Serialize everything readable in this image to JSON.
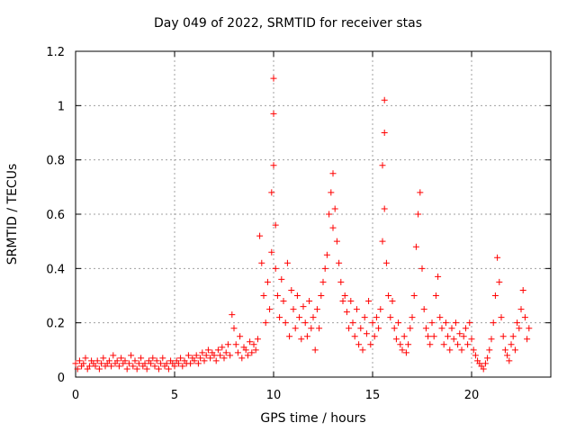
{
  "chart_data": {
    "type": "scatter",
    "title": "Day 049 of 2022, SRMTID for receiver stas",
    "xlabel": "GPS time / hours",
    "ylabel": "SRMTID / TECUs",
    "xlim": [
      0,
      24
    ],
    "ylim": [
      0,
      1.2
    ],
    "xticks": [
      "0",
      "5",
      "10",
      "15",
      "20"
    ],
    "xtick_values": [
      0,
      5,
      10,
      15,
      20
    ],
    "yticks": [
      "0",
      "0.2",
      "0.4",
      "0.6",
      "0.8",
      "1",
      "1.2"
    ],
    "ytick_values": [
      0,
      0.2,
      0.4,
      0.6,
      0.8,
      1.0,
      1.2
    ],
    "grid": true,
    "marker": "+",
    "color": "#ff0000",
    "series": [
      {
        "name": "SRMTID",
        "points": [
          [
            0.0,
            0.05
          ],
          [
            0.1,
            0.03
          ],
          [
            0.2,
            0.06
          ],
          [
            0.3,
            0.04
          ],
          [
            0.4,
            0.05
          ],
          [
            0.5,
            0.07
          ],
          [
            0.6,
            0.03
          ],
          [
            0.7,
            0.04
          ],
          [
            0.8,
            0.06
          ],
          [
            0.9,
            0.05
          ],
          [
            1.0,
            0.04
          ],
          [
            1.1,
            0.06
          ],
          [
            1.2,
            0.03
          ],
          [
            1.3,
            0.05
          ],
          [
            1.4,
            0.07
          ],
          [
            1.5,
            0.04
          ],
          [
            1.6,
            0.05
          ],
          [
            1.7,
            0.06
          ],
          [
            1.8,
            0.04
          ],
          [
            1.9,
            0.08
          ],
          [
            2.0,
            0.05
          ],
          [
            2.1,
            0.06
          ],
          [
            2.2,
            0.04
          ],
          [
            2.3,
            0.07
          ],
          [
            2.4,
            0.05
          ],
          [
            2.5,
            0.06
          ],
          [
            2.6,
            0.03
          ],
          [
            2.7,
            0.05
          ],
          [
            2.8,
            0.08
          ],
          [
            2.9,
            0.04
          ],
          [
            3.0,
            0.06
          ],
          [
            3.1,
            0.03
          ],
          [
            3.2,
            0.05
          ],
          [
            3.3,
            0.07
          ],
          [
            3.4,
            0.04
          ],
          [
            3.5,
            0.05
          ],
          [
            3.6,
            0.03
          ],
          [
            3.7,
            0.06
          ],
          [
            3.8,
            0.05
          ],
          [
            3.9,
            0.07
          ],
          [
            4.0,
            0.04
          ],
          [
            4.1,
            0.06
          ],
          [
            4.2,
            0.03
          ],
          [
            4.3,
            0.05
          ],
          [
            4.4,
            0.07
          ],
          [
            4.5,
            0.04
          ],
          [
            4.6,
            0.05
          ],
          [
            4.7,
            0.03
          ],
          [
            4.8,
            0.06
          ],
          [
            4.9,
            0.05
          ],
          [
            5.0,
            0.04
          ],
          [
            5.1,
            0.06
          ],
          [
            5.2,
            0.05
          ],
          [
            5.3,
            0.07
          ],
          [
            5.4,
            0.04
          ],
          [
            5.5,
            0.06
          ],
          [
            5.6,
            0.05
          ],
          [
            5.7,
            0.08
          ],
          [
            5.8,
            0.05
          ],
          [
            5.9,
            0.07
          ],
          [
            6.0,
            0.06
          ],
          [
            6.1,
            0.08
          ],
          [
            6.2,
            0.05
          ],
          [
            6.3,
            0.07
          ],
          [
            6.4,
            0.09
          ],
          [
            6.5,
            0.06
          ],
          [
            6.6,
            0.08
          ],
          [
            6.7,
            0.1
          ],
          [
            6.8,
            0.07
          ],
          [
            6.9,
            0.09
          ],
          [
            7.0,
            0.08
          ],
          [
            7.1,
            0.06
          ],
          [
            7.2,
            0.1
          ],
          [
            7.3,
            0.08
          ],
          [
            7.4,
            0.11
          ],
          [
            7.5,
            0.07
          ],
          [
            7.6,
            0.09
          ],
          [
            7.7,
            0.12
          ],
          [
            7.8,
            0.08
          ],
          [
            7.9,
            0.23
          ],
          [
            8.0,
            0.18
          ],
          [
            8.1,
            0.12
          ],
          [
            8.2,
            0.09
          ],
          [
            8.3,
            0.15
          ],
          [
            8.4,
            0.07
          ],
          [
            8.5,
            0.11
          ],
          [
            8.6,
            0.1
          ],
          [
            8.7,
            0.08
          ],
          [
            8.8,
            0.13
          ],
          [
            8.9,
            0.09
          ],
          [
            9.0,
            0.12
          ],
          [
            9.1,
            0.1
          ],
          [
            9.2,
            0.14
          ],
          [
            9.3,
            0.52
          ],
          [
            9.4,
            0.42
          ],
          [
            9.5,
            0.3
          ],
          [
            9.6,
            0.2
          ],
          [
            9.7,
            0.35
          ],
          [
            9.8,
            0.25
          ],
          [
            9.9,
            0.46
          ],
          [
            9.9,
            0.68
          ],
          [
            10.0,
            0.78
          ],
          [
            10.0,
            0.97
          ],
          [
            10.0,
            1.1
          ],
          [
            10.1,
            0.56
          ],
          [
            10.1,
            0.4
          ],
          [
            10.2,
            0.3
          ],
          [
            10.3,
            0.22
          ],
          [
            10.4,
            0.36
          ],
          [
            10.5,
            0.28
          ],
          [
            10.6,
            0.2
          ],
          [
            10.7,
            0.42
          ],
          [
            10.8,
            0.15
          ],
          [
            10.9,
            0.32
          ],
          [
            11.0,
            0.25
          ],
          [
            11.1,
            0.18
          ],
          [
            11.2,
            0.3
          ],
          [
            11.3,
            0.22
          ],
          [
            11.4,
            0.14
          ],
          [
            11.5,
            0.26
          ],
          [
            11.6,
            0.2
          ],
          [
            11.7,
            0.15
          ],
          [
            11.8,
            0.28
          ],
          [
            11.9,
            0.18
          ],
          [
            12.0,
            0.22
          ],
          [
            12.1,
            0.1
          ],
          [
            12.2,
            0.25
          ],
          [
            12.3,
            0.18
          ],
          [
            12.4,
            0.3
          ],
          [
            12.5,
            0.35
          ],
          [
            12.6,
            0.4
          ],
          [
            12.7,
            0.45
          ],
          [
            12.8,
            0.6
          ],
          [
            12.9,
            0.68
          ],
          [
            13.0,
            0.75
          ],
          [
            13.0,
            0.55
          ],
          [
            13.1,
            0.62
          ],
          [
            13.2,
            0.5
          ],
          [
            13.3,
            0.42
          ],
          [
            13.4,
            0.35
          ],
          [
            13.5,
            0.28
          ],
          [
            13.6,
            0.3
          ],
          [
            13.7,
            0.24
          ],
          [
            13.8,
            0.18
          ],
          [
            13.9,
            0.28
          ],
          [
            14.0,
            0.2
          ],
          [
            14.1,
            0.15
          ],
          [
            14.2,
            0.25
          ],
          [
            14.3,
            0.12
          ],
          [
            14.4,
            0.18
          ],
          [
            14.5,
            0.1
          ],
          [
            14.6,
            0.22
          ],
          [
            14.7,
            0.16
          ],
          [
            14.8,
            0.28
          ],
          [
            14.9,
            0.12
          ],
          [
            15.0,
            0.2
          ],
          [
            15.1,
            0.15
          ],
          [
            15.2,
            0.22
          ],
          [
            15.3,
            0.18
          ],
          [
            15.4,
            0.25
          ],
          [
            15.5,
            0.5
          ],
          [
            15.5,
            0.78
          ],
          [
            15.6,
            0.9
          ],
          [
            15.6,
            1.02
          ],
          [
            15.6,
            0.62
          ],
          [
            15.7,
            0.42
          ],
          [
            15.8,
            0.3
          ],
          [
            15.9,
            0.22
          ],
          [
            16.0,
            0.28
          ],
          [
            16.1,
            0.18
          ],
          [
            16.2,
            0.14
          ],
          [
            16.3,
            0.2
          ],
          [
            16.4,
            0.12
          ],
          [
            16.5,
            0.1
          ],
          [
            16.6,
            0.15
          ],
          [
            16.7,
            0.09
          ],
          [
            16.8,
            0.12
          ],
          [
            16.9,
            0.18
          ],
          [
            17.0,
            0.22
          ],
          [
            17.1,
            0.3
          ],
          [
            17.2,
            0.48
          ],
          [
            17.3,
            0.6
          ],
          [
            17.4,
            0.68
          ],
          [
            17.5,
            0.4
          ],
          [
            17.6,
            0.25
          ],
          [
            17.7,
            0.18
          ],
          [
            17.8,
            0.15
          ],
          [
            17.9,
            0.12
          ],
          [
            18.0,
            0.2
          ],
          [
            18.1,
            0.15
          ],
          [
            18.2,
            0.3
          ],
          [
            18.3,
            0.37
          ],
          [
            18.4,
            0.22
          ],
          [
            18.5,
            0.18
          ],
          [
            18.6,
            0.12
          ],
          [
            18.7,
            0.2
          ],
          [
            18.8,
            0.15
          ],
          [
            18.9,
            0.1
          ],
          [
            19.0,
            0.18
          ],
          [
            19.1,
            0.14
          ],
          [
            19.2,
            0.2
          ],
          [
            19.3,
            0.12
          ],
          [
            19.4,
            0.16
          ],
          [
            19.5,
            0.1
          ],
          [
            19.6,
            0.15
          ],
          [
            19.7,
            0.18
          ],
          [
            19.8,
            0.12
          ],
          [
            19.9,
            0.2
          ],
          [
            20.0,
            0.14
          ],
          [
            20.1,
            0.1
          ],
          [
            20.2,
            0.08
          ],
          [
            20.3,
            0.06
          ],
          [
            20.4,
            0.05
          ],
          [
            20.5,
            0.04
          ],
          [
            20.6,
            0.03
          ],
          [
            20.7,
            0.05
          ],
          [
            20.8,
            0.07
          ],
          [
            20.9,
            0.1
          ],
          [
            21.0,
            0.14
          ],
          [
            21.1,
            0.2
          ],
          [
            21.2,
            0.3
          ],
          [
            21.3,
            0.44
          ],
          [
            21.4,
            0.35
          ],
          [
            21.5,
            0.22
          ],
          [
            21.6,
            0.15
          ],
          [
            21.7,
            0.1
          ],
          [
            21.8,
            0.08
          ],
          [
            21.9,
            0.06
          ],
          [
            22.0,
            0.12
          ],
          [
            22.1,
            0.15
          ],
          [
            22.2,
            0.1
          ],
          [
            22.3,
            0.2
          ],
          [
            22.4,
            0.18
          ],
          [
            22.5,
            0.25
          ],
          [
            22.6,
            0.32
          ],
          [
            22.7,
            0.22
          ],
          [
            22.8,
            0.14
          ],
          [
            22.9,
            0.18
          ]
        ]
      }
    ]
  }
}
